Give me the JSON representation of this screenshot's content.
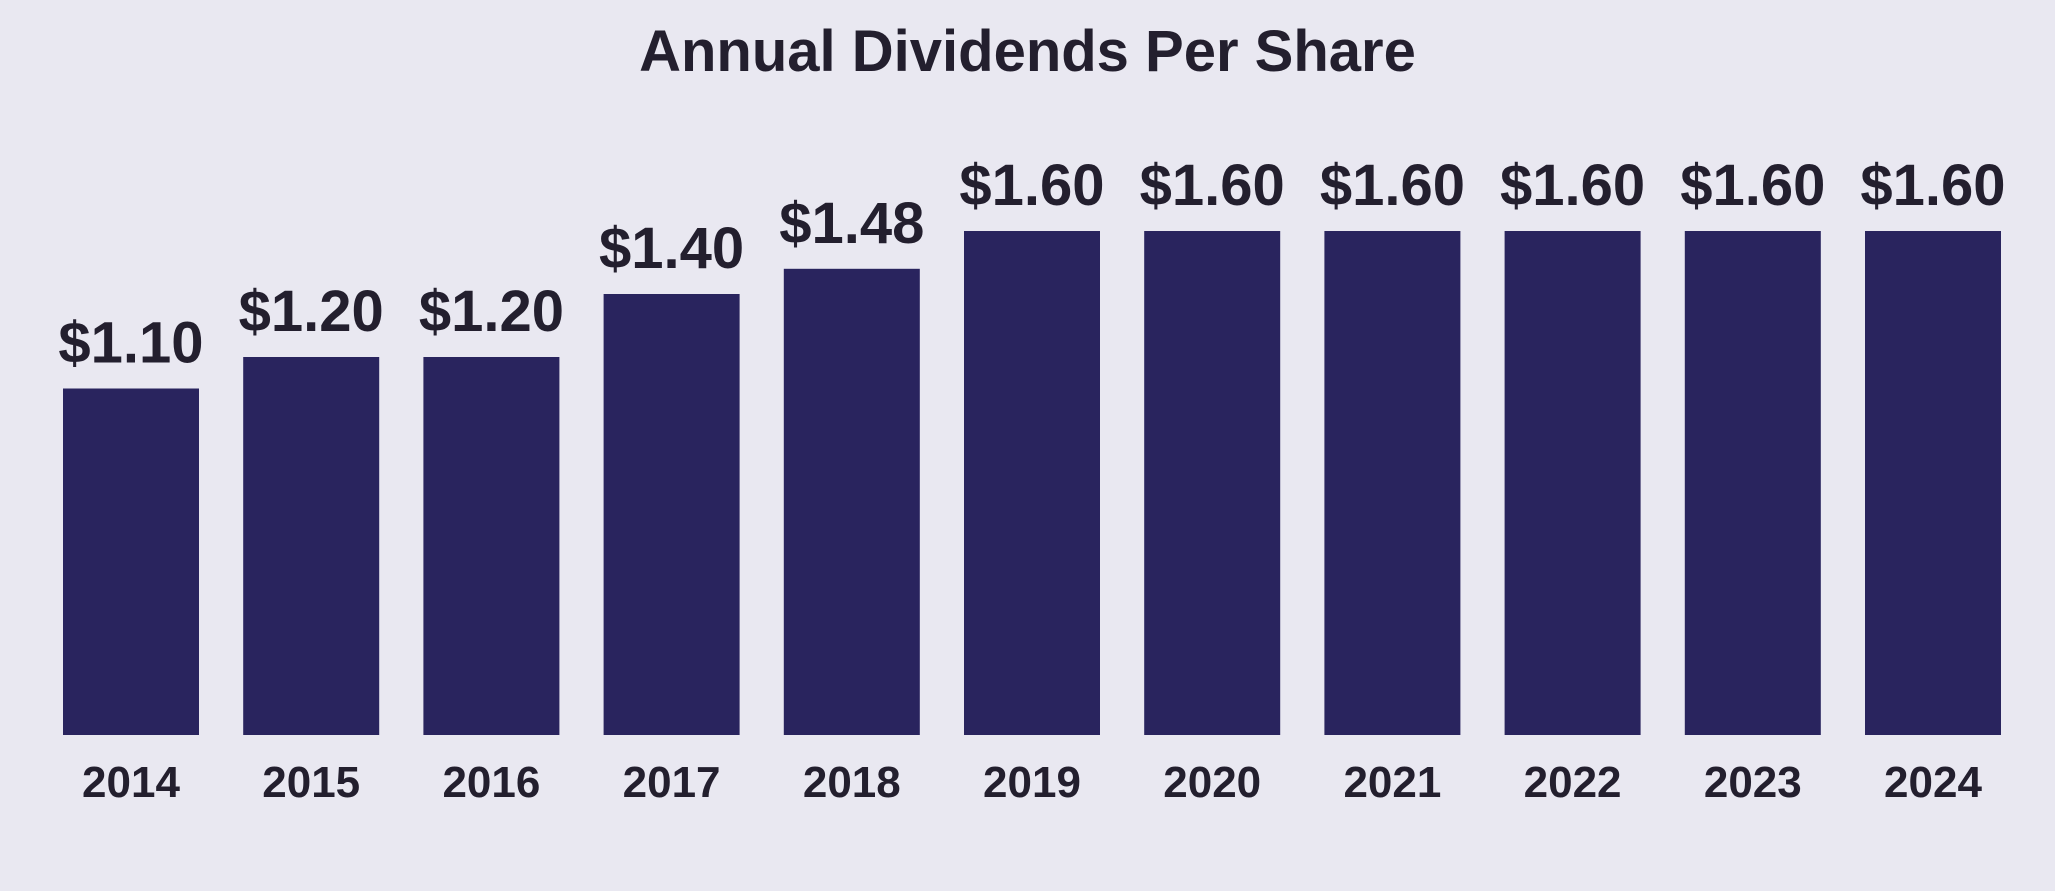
{
  "chart_data": {
    "type": "bar",
    "title": "Annual Dividends Per Share",
    "xlabel": "",
    "ylabel": "",
    "categories": [
      "2014",
      "2015",
      "2016",
      "2017",
      "2018",
      "2019",
      "2020",
      "2021",
      "2022",
      "2023",
      "2024"
    ],
    "values": [
      1.1,
      1.2,
      1.2,
      1.4,
      1.48,
      1.6,
      1.6,
      1.6,
      1.6,
      1.6,
      1.6
    ],
    "data_labels": [
      "$1.10",
      "$1.20",
      "$1.20",
      "$1.40",
      "$1.48",
      "$1.60",
      "$1.60",
      "$1.60",
      "$1.60",
      "$1.60",
      "$1.60"
    ],
    "ylim": [
      0,
      1.6
    ],
    "grid": false,
    "legend": "none",
    "bar_color": "#29245e",
    "text_color": "#231f2e",
    "background_color": "#e9e8f1"
  }
}
